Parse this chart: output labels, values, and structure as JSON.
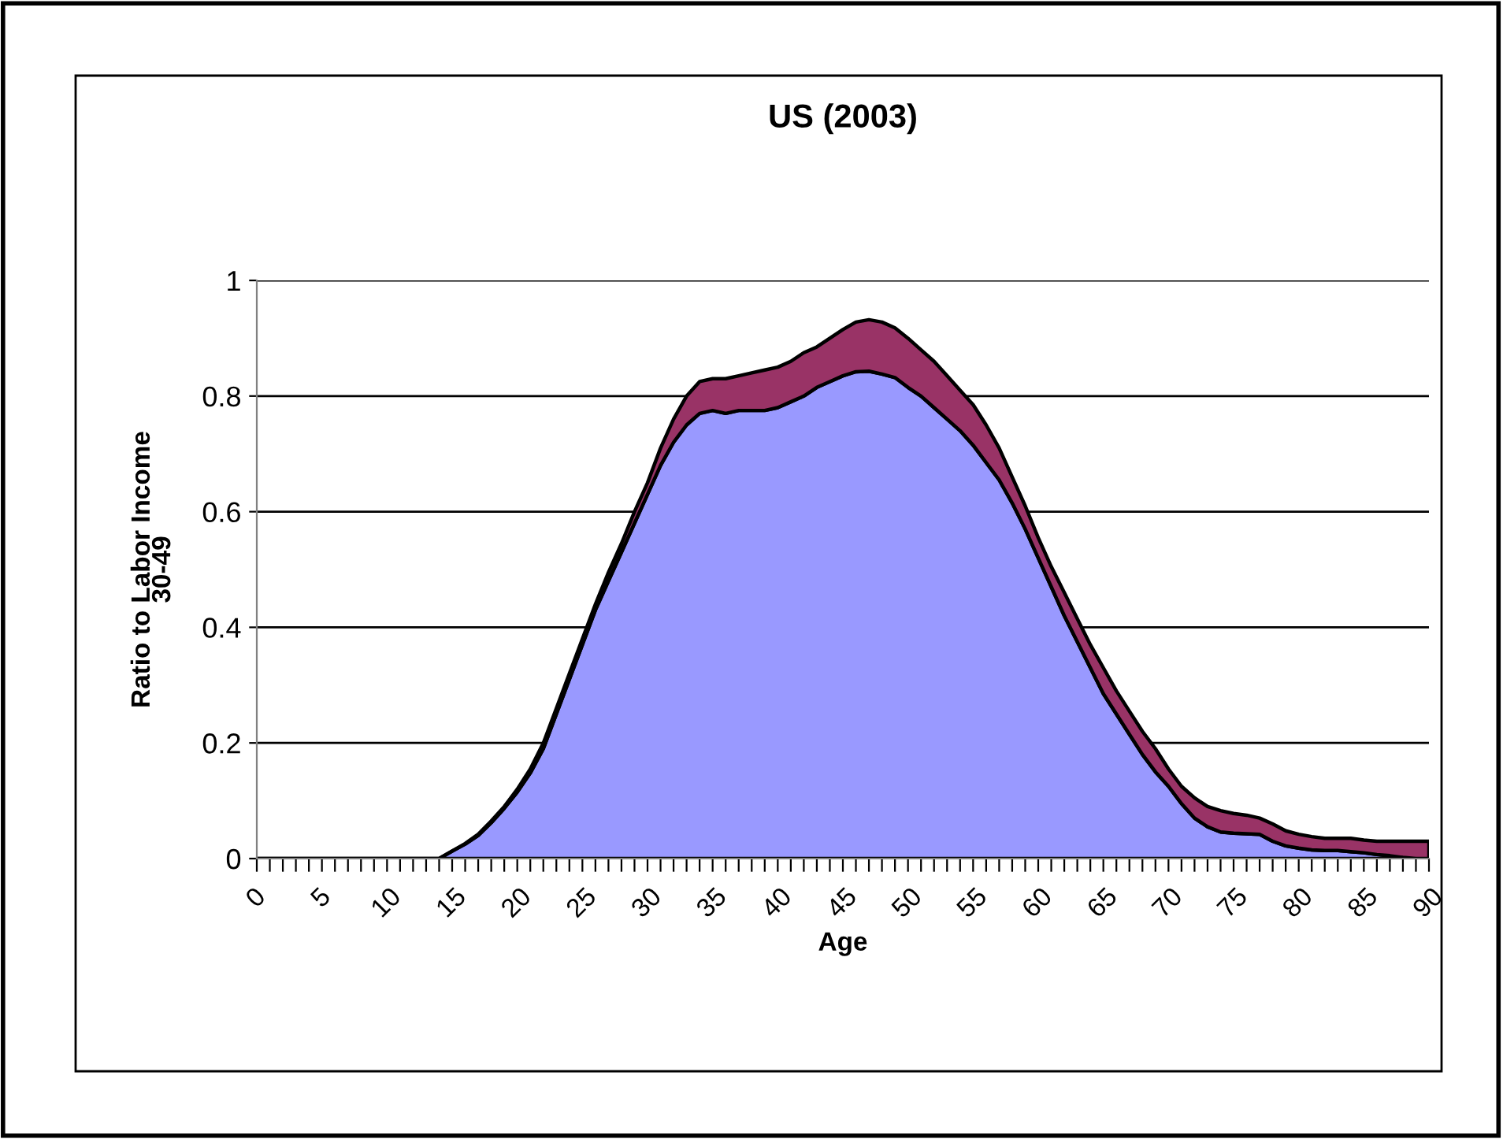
{
  "chart_data": {
    "type": "area",
    "title": "US (2003)",
    "xlabel": "Age",
    "ylabel": "Ratio to Labor Income\n30-49",
    "categories": [
      "0",
      null,
      null,
      null,
      null,
      "5",
      null,
      null,
      null,
      null,
      "10",
      null,
      null,
      null,
      null,
      "15",
      null,
      null,
      null,
      null,
      "20",
      null,
      null,
      null,
      null,
      "25",
      null,
      null,
      null,
      null,
      "30",
      null,
      null,
      null,
      null,
      "35",
      null,
      null,
      null,
      null,
      "40",
      null,
      null,
      null,
      null,
      "45",
      null,
      null,
      null,
      null,
      "50",
      null,
      null,
      null,
      null,
      "55",
      null,
      null,
      null,
      null,
      "60",
      null,
      null,
      null,
      null,
      "65",
      null,
      null,
      null,
      null,
      "70",
      null,
      null,
      null,
      null,
      "75",
      null,
      null,
      null,
      null,
      "80",
      null,
      null,
      null,
      null,
      "85",
      null,
      null,
      null,
      null,
      "90"
    ],
    "stacked": true,
    "series": [
      {
        "color": "#9999ff",
        "values": [
          0,
          0,
          0,
          0,
          0,
          0,
          0,
          0,
          0,
          0,
          0,
          0,
          0,
          0,
          0,
          0.013,
          0.025,
          0.04,
          0.062,
          0.087,
          0.115,
          0.148,
          0.19,
          0.25,
          0.31,
          0.37,
          0.43,
          0.48,
          0.53,
          0.58,
          0.63,
          0.68,
          0.72,
          0.75,
          0.77,
          0.775,
          0.77,
          0.775,
          0.775,
          0.775,
          0.78,
          0.79,
          0.8,
          0.815,
          0.825,
          0.835,
          0.842,
          0.843,
          0.838,
          0.832,
          0.815,
          0.8,
          0.78,
          0.76,
          0.74,
          0.715,
          0.685,
          0.655,
          0.615,
          0.57,
          0.52,
          0.47,
          0.42,
          0.375,
          0.33,
          0.285,
          0.25,
          0.215,
          0.18,
          0.15,
          0.125,
          0.095,
          0.07,
          0.055,
          0.046,
          0.044,
          0.043,
          0.042,
          0.03,
          0.022,
          0.018,
          0.015,
          0.014,
          0.014,
          0.012,
          0.01,
          0.007,
          0.005,
          0.002,
          0,
          0
        ]
      },
      {
        "color": "#993366",
        "values": [
          0,
          0,
          0,
          0,
          0,
          0,
          0,
          0,
          0,
          0,
          0,
          0,
          0,
          0,
          0,
          0,
          0.001,
          0.002,
          0.003,
          0.003,
          0.005,
          0.007,
          0.01,
          0.01,
          0.01,
          0.01,
          0.01,
          0.015,
          0.015,
          0.02,
          0.02,
          0.03,
          0.04,
          0.05,
          0.055,
          0.055,
          0.06,
          0.06,
          0.065,
          0.07,
          0.07,
          0.07,
          0.075,
          0.07,
          0.075,
          0.08,
          0.086,
          0.089,
          0.09,
          0.086,
          0.085,
          0.08,
          0.08,
          0.075,
          0.07,
          0.07,
          0.065,
          0.055,
          0.045,
          0.04,
          0.035,
          0.035,
          0.04,
          0.04,
          0.04,
          0.045,
          0.04,
          0.04,
          0.04,
          0.04,
          0.03,
          0.03,
          0.035,
          0.035,
          0.037,
          0.034,
          0.032,
          0.028,
          0.03,
          0.026,
          0.024,
          0.023,
          0.021,
          0.021,
          0.023,
          0.022,
          0.023,
          0.025,
          0.028,
          0.03,
          0.03
        ]
      }
    ],
    "ylim": [
      0,
      1
    ],
    "yticks": [
      0,
      0.2,
      0.4,
      0.6,
      0.8,
      1
    ],
    "grid": "y",
    "legend": false
  }
}
